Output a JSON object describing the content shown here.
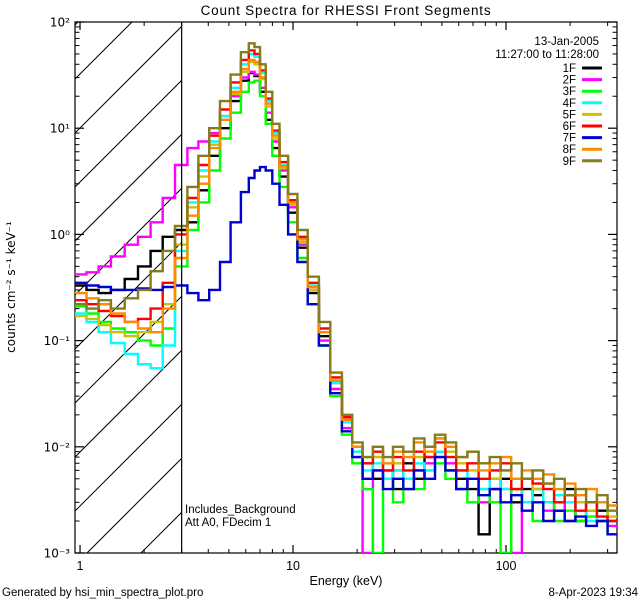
{
  "title": "Count Spectra for RHESSI Front Segments",
  "legend": {
    "date": "13-Jan-2005",
    "time_range": "11:27:00 to 11:28:00",
    "entries": [
      {
        "label": "1F",
        "color": "#000000"
      },
      {
        "label": "2F",
        "color": "#ff00ff"
      },
      {
        "label": "3F",
        "color": "#00ff00"
      },
      {
        "label": "4F",
        "color": "#00ffff"
      },
      {
        "label": "5F",
        "color": "#ccc200"
      },
      {
        "label": "6F",
        "color": "#ff0000"
      },
      {
        "label": "7F",
        "color": "#0000cf"
      },
      {
        "label": "8F",
        "color": "#ff8a00"
      },
      {
        "label": "9F",
        "color": "#857c1c"
      }
    ]
  },
  "annotation": {
    "line1": "Includes_Background",
    "line2": "Att A0, FDecim 1"
  },
  "footer": {
    "left": "Generated by hsi_min_spectra_plot.pro",
    "right": "8-Apr-2023 19:34"
  },
  "chart_data": {
    "type": "line",
    "title": "Count Spectra for RHESSI Front Segments",
    "xlabel": "Energy (keV)",
    "ylabel": "counts cm⁻² s⁻¹ keV⁻¹",
    "xscale": "log",
    "yscale": "log",
    "xlim": [
      0.947,
      332
    ],
    "ylim": [
      0.001,
      100
    ],
    "grid": false,
    "legend_position": "top-right",
    "x_major_ticks": [
      1,
      10,
      100
    ],
    "x_tick_labels": [
      "1",
      "10",
      "100"
    ],
    "y_major_ticks": [
      100,
      10,
      1,
      0.1,
      0.01,
      0.001
    ],
    "y_tick_labels": [
      "10²",
      "10¹",
      "10⁰",
      "10⁻¹",
      "10⁻²",
      "10⁻³"
    ],
    "attenuator_cutoff_keV": 3.0,
    "hatch_region": {
      "from_keV": 0.947,
      "to_keV": 3.0
    },
    "energies_keV": [
      1.0,
      1.15,
      1.3,
      1.5,
      1.75,
      2.0,
      2.3,
      2.6,
      3.0,
      3.4,
      3.8,
      4.3,
      4.8,
      5.4,
      6.0,
      6.4,
      6.8,
      7.2,
      7.7,
      8.3,
      9.0,
      10,
      11,
      12.5,
      14,
      16,
      18,
      20,
      22.5,
      25,
      28,
      31,
      35,
      39,
      44,
      49,
      55,
      62,
      70,
      79,
      89,
      100,
      112,
      126,
      141,
      159,
      178,
      200,
      224,
      252,
      283,
      318
    ],
    "series": [
      {
        "name": "1F",
        "color": "#000000",
        "values": [
          0.33,
          0.3,
          0.28,
          0.3,
          0.38,
          0.5,
          0.7,
          0.95,
          1.1,
          1.3,
          2.6,
          5.5,
          10,
          18,
          28,
          33,
          31,
          22,
          12,
          6.5,
          3.5,
          1.6,
          0.75,
          0.28,
          0.11,
          0.04,
          0.018,
          0.01,
          0.007,
          0.005,
          0.006,
          0.004,
          0.007,
          0.005,
          0.008,
          0.009,
          0.006,
          0.005,
          0.004,
          0.0015,
          0.004,
          0.005,
          0.003,
          0.004,
          0.0035,
          0.003,
          0.0025,
          0.004,
          0.002,
          0.003,
          0.0025,
          0.002
        ]
      },
      {
        "name": "2F",
        "color": "#ff00ff",
        "values": [
          0.42,
          0.44,
          0.5,
          0.62,
          0.8,
          0.95,
          1.3,
          2.2,
          4.5,
          6.5,
          7.5,
          9.0,
          13,
          20,
          30,
          34,
          32,
          24,
          14,
          7.5,
          4.0,
          1.8,
          0.8,
          0.3,
          0.1,
          0.035,
          0.015,
          0.008,
          0.001,
          0.006,
          0.005,
          0.006,
          0.004,
          0.006,
          0.007,
          0.008,
          0.007,
          0.004,
          0.005,
          0.003,
          0.005,
          0.004,
          0.001,
          0.003,
          0.004,
          0.0025,
          0.003,
          0.002,
          0.003,
          0.0025,
          0.002,
          0.0018
        ]
      },
      {
        "name": "3F",
        "color": "#00ff00",
        "values": [
          0.21,
          0.18,
          0.15,
          0.13,
          0.12,
          0.1,
          0.09,
          0.13,
          0.5,
          1.1,
          2.0,
          4.0,
          8.0,
          14,
          22,
          27,
          28,
          20,
          11,
          5.5,
          2.8,
          1.3,
          0.6,
          0.22,
          0.09,
          0.03,
          0.013,
          0.007,
          0.004,
          0.001,
          0.005,
          0.003,
          0.005,
          0.004,
          0.006,
          0.007,
          0.005,
          0.004,
          0.003,
          0.004,
          0.003,
          0.001,
          0.004,
          0.003,
          0.002,
          0.003,
          0.002,
          0.0025,
          0.002,
          0.0022,
          0.002,
          0.0015
        ]
      },
      {
        "name": "4F",
        "color": "#00ffff",
        "values": [
          0.18,
          0.15,
          0.12,
          0.095,
          0.075,
          0.06,
          0.055,
          0.09,
          0.7,
          2.0,
          4.0,
          7.5,
          13,
          24,
          40,
          50,
          47,
          33,
          18,
          9.0,
          4.5,
          2.0,
          0.9,
          0.33,
          0.12,
          0.04,
          0.017,
          0.009,
          0.006,
          0.007,
          0.005,
          0.006,
          0.005,
          0.007,
          0.006,
          0.009,
          0.008,
          0.006,
          0.005,
          0.004,
          0.006,
          0.004,
          0.005,
          0.003,
          0.004,
          0.003,
          0.0035,
          0.003,
          0.0025,
          0.002,
          0.003,
          0.002
        ]
      },
      {
        "name": "5F",
        "color": "#ccc200",
        "values": [
          0.17,
          0.16,
          0.14,
          0.12,
          0.11,
          0.12,
          0.15,
          0.22,
          0.8,
          1.8,
          3.5,
          7.0,
          12,
          21,
          34,
          42,
          40,
          29,
          16,
          8.0,
          4.2,
          1.9,
          0.85,
          0.3,
          0.12,
          0.045,
          0.018,
          0.01,
          0.007,
          0.008,
          0.006,
          0.007,
          0.006,
          0.008,
          0.01,
          0.012,
          0.009,
          0.007,
          0.006,
          0.007,
          0.005,
          0.006,
          0.004,
          0.005,
          0.004,
          0.0045,
          0.003,
          0.0035,
          0.003,
          0.0025,
          0.003,
          0.0022
        ]
      },
      {
        "name": "6F",
        "color": "#ff0000",
        "values": [
          0.24,
          0.22,
          0.19,
          0.17,
          0.15,
          0.16,
          0.2,
          0.35,
          1.0,
          2.2,
          4.5,
          8.5,
          15,
          27,
          44,
          54,
          50,
          35,
          19,
          9.5,
          4.8,
          2.1,
          0.95,
          0.35,
          0.13,
          0.045,
          0.019,
          0.01,
          0.007,
          0.009,
          0.006,
          0.008,
          0.006,
          0.009,
          0.008,
          0.011,
          0.008,
          0.006,
          0.007,
          0.005,
          0.006,
          0.007,
          0.004,
          0.005,
          0.0045,
          0.004,
          0.003,
          0.0035,
          0.0025,
          0.003,
          0.0022,
          0.002
        ]
      },
      {
        "name": "7F",
        "color": "#0000cf",
        "values": [
          0.35,
          0.33,
          0.32,
          0.3,
          0.3,
          0.31,
          0.3,
          0.32,
          0.33,
          0.28,
          0.24,
          0.3,
          0.55,
          1.3,
          2.5,
          3.4,
          4.0,
          4.3,
          4.0,
          3.0,
          1.9,
          1.0,
          0.55,
          0.22,
          0.09,
          0.032,
          0.014,
          0.008,
          0.005,
          0.006,
          0.004,
          0.005,
          0.004,
          0.006,
          0.005,
          0.008,
          0.006,
          0.004,
          0.005,
          0.0035,
          0.004,
          0.003,
          0.0035,
          0.0025,
          0.003,
          0.002,
          0.0025,
          0.002,
          0.0022,
          0.0018,
          0.002,
          0.0015
        ]
      },
      {
        "name": "8F",
        "color": "#ff8a00",
        "values": [
          0.28,
          0.25,
          0.22,
          0.18,
          0.15,
          0.13,
          0.12,
          0.2,
          0.6,
          1.5,
          3.0,
          6.5,
          12,
          22,
          36,
          44,
          42,
          30,
          17,
          8.5,
          4.4,
          2.0,
          0.9,
          0.32,
          0.12,
          0.042,
          0.018,
          0.01,
          0.008,
          0.01,
          0.007,
          0.009,
          0.008,
          0.011,
          0.009,
          0.012,
          0.01,
          0.008,
          0.009,
          0.006,
          0.007,
          0.008,
          0.005,
          0.006,
          0.005,
          0.0055,
          0.004,
          0.0045,
          0.0035,
          0.004,
          0.003,
          0.0028
        ]
      },
      {
        "name": "9F",
        "color": "#857c1c",
        "values": [
          0.22,
          0.2,
          0.24,
          0.2,
          0.25,
          0.3,
          0.45,
          0.7,
          1.2,
          2.8,
          5.5,
          10,
          18,
          32,
          52,
          63,
          58,
          40,
          22,
          11,
          5.5,
          2.4,
          1.1,
          0.4,
          0.15,
          0.05,
          0.02,
          0.011,
          0.008,
          0.01,
          0.008,
          0.01,
          0.009,
          0.012,
          0.01,
          0.013,
          0.011,
          0.008,
          0.009,
          0.007,
          0.008,
          0.006,
          0.007,
          0.005,
          0.006,
          0.0045,
          0.005,
          0.0035,
          0.004,
          0.003,
          0.0035,
          0.0025
        ]
      }
    ]
  }
}
